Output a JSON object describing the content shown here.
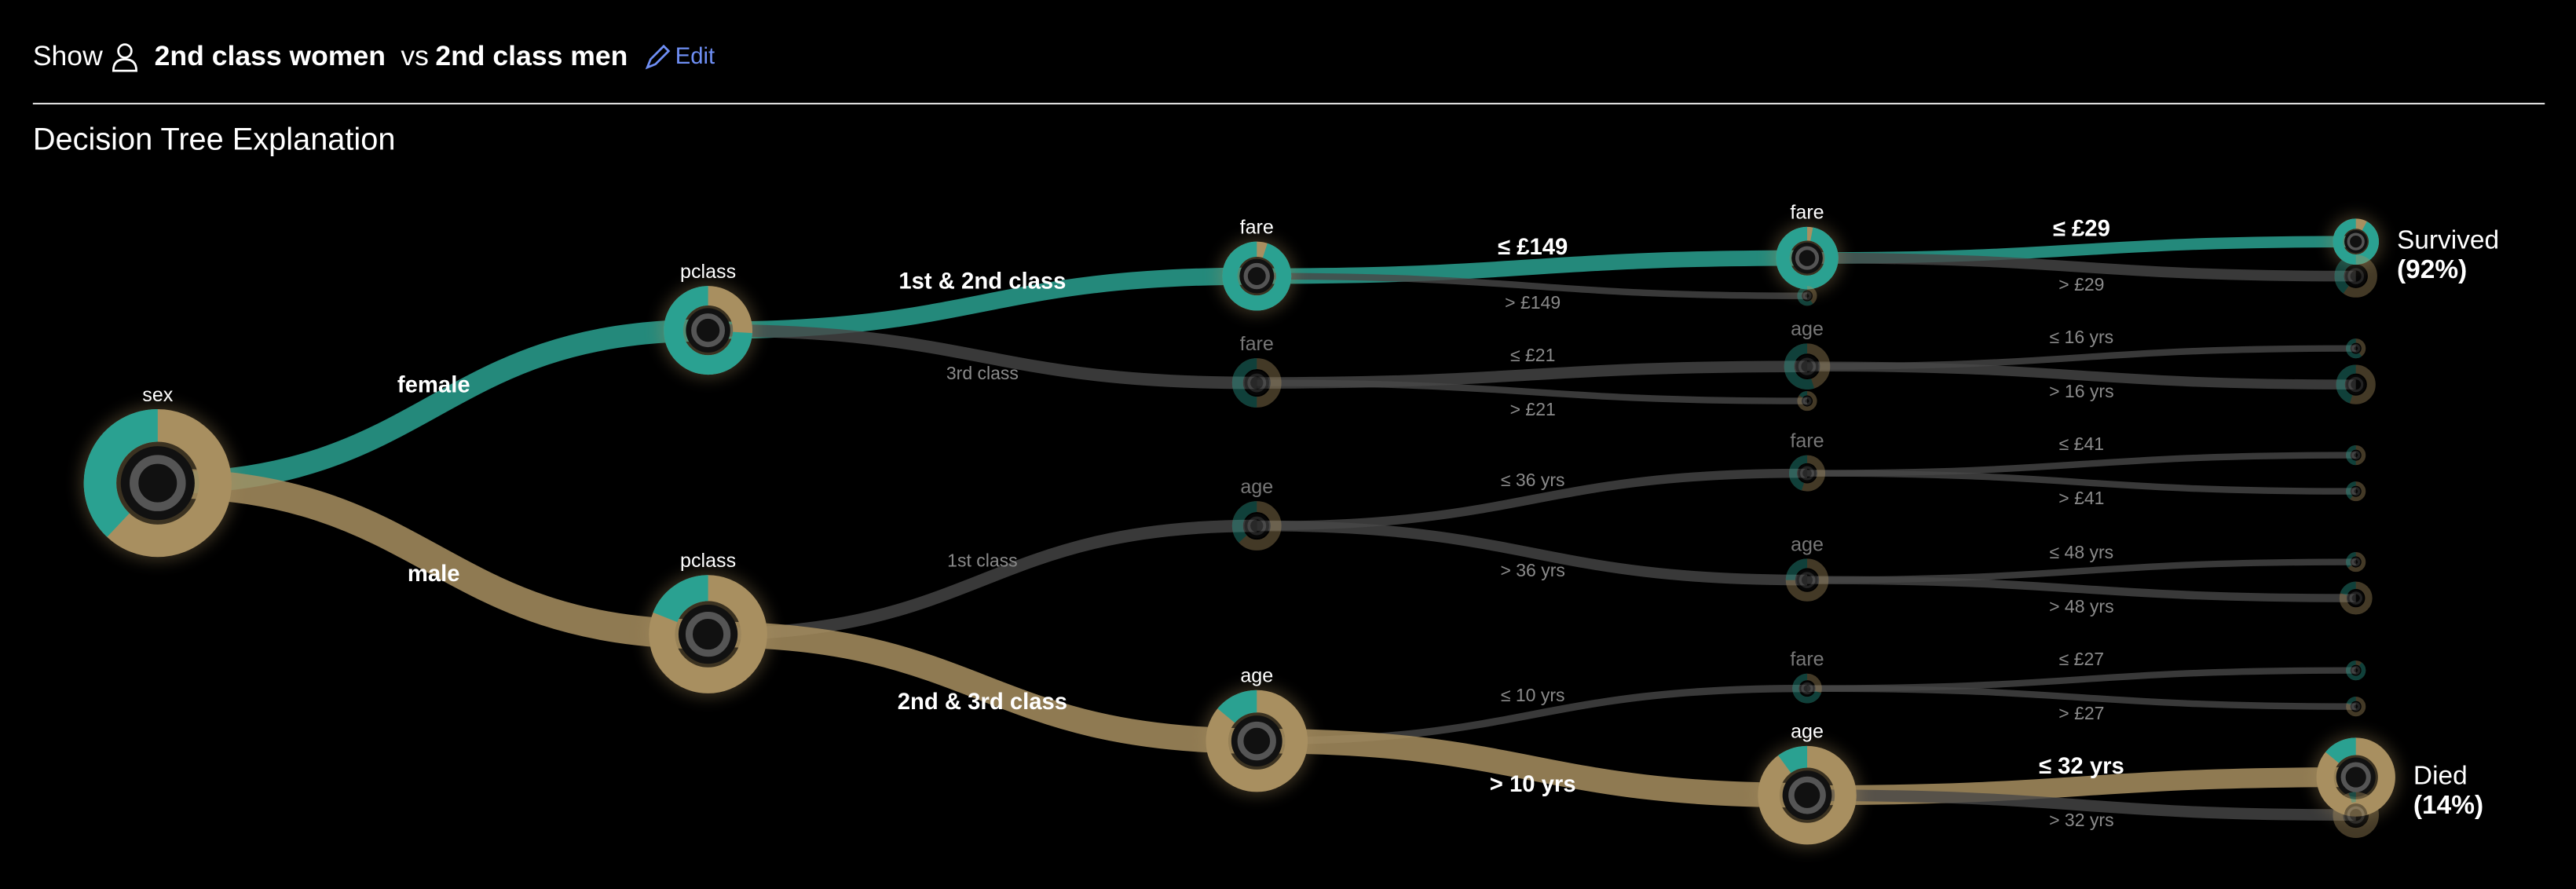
{
  "header": {
    "show": "Show",
    "group_a": "2nd class women",
    "vs": "vs",
    "group_b": "2nd class men",
    "edit": "Edit"
  },
  "title": "Decision Tree Explanation",
  "nodes": [
    {
      "label": "sex",
      "survived": 38
    },
    {
      "parent": 0,
      "edge": "female",
      "label": "pclass",
      "survived": 74
    },
    {
      "parent": 0,
      "edge": "male",
      "label": "pclass",
      "survived": 19
    },
    {
      "parent": 1,
      "edge": "1st & 2nd class",
      "label": "fare",
      "survived": 95
    },
    {
      "parent": 1,
      "edge": "3rd class",
      "label": "fare",
      "survived": 50
    },
    {
      "parent": 2,
      "edge": "1st class",
      "label": "age",
      "survived": 37
    },
    {
      "parent": 2,
      "edge": "2nd & 3rd class",
      "label": "age",
      "survived": 14
    },
    {
      "parent": 3,
      "edge": "≤ £149",
      "label": "fare",
      "survived": 97
    },
    {
      "parent": 3,
      "edge": "> £149",
      "survived": 60
    },
    {
      "parent": 4,
      "edge": "≤ £21",
      "label": "age",
      "survived": 55
    },
    {
      "parent": 4,
      "edge": "> £21",
      "survived": 15
    },
    {
      "parent": 5,
      "edge": "≤ 36 yrs",
      "label": "fare",
      "survived": 45
    },
    {
      "parent": 5,
      "edge": "> 36 yrs",
      "label": "age",
      "survived": 25
    },
    {
      "parent": 6,
      "edge": "≤ 10 yrs",
      "label": "fare",
      "survived": 70
    },
    {
      "parent": 6,
      "edge": "> 10 yrs",
      "label": "age",
      "survived": 10
    },
    {
      "parent": 7,
      "edge": "≤ £29",
      "survived": 92,
      "outcome": "Survived",
      "outcome_share": "(92%)"
    },
    {
      "parent": 7,
      "edge": "> £29",
      "survived": 40
    },
    {
      "parent": 9,
      "edge": "≤ 16 yrs",
      "survived": 60
    },
    {
      "parent": 9,
      "edge": "> 16 yrs",
      "survived": 45
    },
    {
      "parent": 11,
      "edge": "≤ £41",
      "survived": 50
    },
    {
      "parent": 11,
      "edge": "> £41",
      "survived": 40
    },
    {
      "parent": 12,
      "edge": "≤ 48 yrs",
      "survived": 35
    },
    {
      "parent": 12,
      "edge": "> 48 yrs",
      "survived": 20
    },
    {
      "parent": 13,
      "edge": "≤ £27",
      "survived": 90
    },
    {
      "parent": 13,
      "edge": "> £27",
      "survived": 20
    },
    {
      "parent": 14,
      "edge": "≤ 32 yrs",
      "survived": 14,
      "outcome": "Died",
      "outcome_share": "(14%)"
    },
    {
      "parent": 14,
      "edge": "> 32 yrs",
      "survived": 5
    }
  ]
}
